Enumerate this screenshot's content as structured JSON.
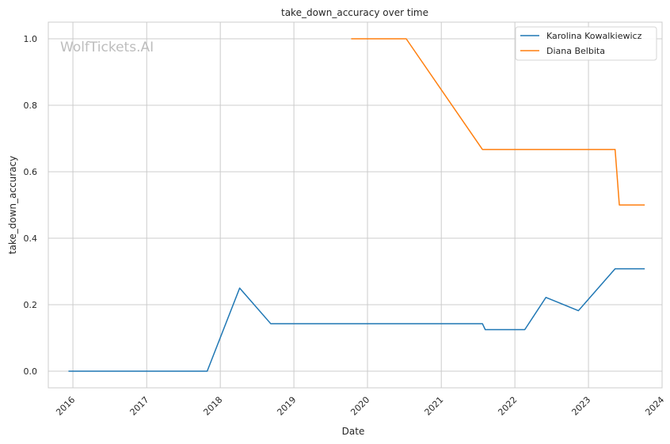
{
  "chart_data": {
    "type": "line",
    "title": "take_down_accuracy over time",
    "xlabel": "Date",
    "ylabel": "take_down_accuracy",
    "watermark": "WolfTickets.AI",
    "x_axis": {
      "type": "date",
      "range": [
        "2015-09-01",
        "2024-01-01"
      ],
      "ticks": [
        "2016",
        "2017",
        "2018",
        "2019",
        "2020",
        "2021",
        "2022",
        "2023",
        "2024"
      ]
    },
    "y_axis": {
      "range": [
        -0.05,
        1.05
      ],
      "ticks": [
        "0.0",
        "0.2",
        "0.4",
        "0.6",
        "0.8",
        "1.0"
      ]
    },
    "grid": true,
    "legend_position": "top-right",
    "series": [
      {
        "name": "Karolina Kowalkiewicz",
        "color": "#1f77b4",
        "points": [
          [
            "2015-12-10",
            0.0
          ],
          [
            "2017-10-28",
            0.0
          ],
          [
            "2018-04-07",
            0.25
          ],
          [
            "2018-09-08",
            0.143
          ],
          [
            "2021-07-24",
            0.143
          ],
          [
            "2021-08-07",
            0.125
          ],
          [
            "2022-02-19",
            0.125
          ],
          [
            "2022-06-04",
            0.222
          ],
          [
            "2022-11-12",
            0.182
          ],
          [
            "2023-05-13",
            0.308
          ],
          [
            "2023-10-07",
            0.308
          ]
        ]
      },
      {
        "name": "Diana Belbita",
        "color": "#ff7f0e",
        "points": [
          [
            "2019-10-12",
            1.0
          ],
          [
            "2020-07-11",
            1.0
          ],
          [
            "2021-07-24",
            0.667
          ],
          [
            "2023-05-13",
            0.667
          ],
          [
            "2023-06-03",
            0.5
          ],
          [
            "2023-10-07",
            0.5
          ]
        ]
      }
    ]
  }
}
